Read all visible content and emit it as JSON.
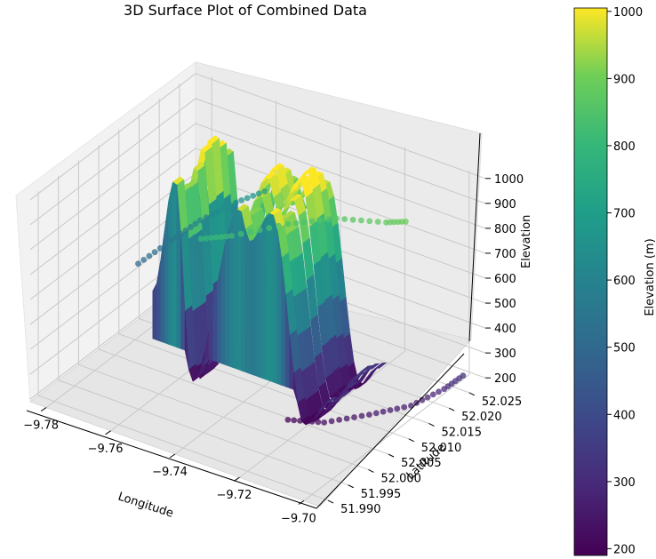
{
  "chart_data": {
    "type": "surface",
    "title": "3D Surface Plot of Combined Data",
    "xlabel": "Longitude",
    "ylabel": "Latitude",
    "zlabel": "Elevation",
    "x_ticks": [
      "−9.78",
      "−9.76",
      "−9.74",
      "−9.72",
      "−9.70"
    ],
    "y_ticks": [
      "51.990",
      "51.995",
      "52.000",
      "52.005",
      "52.010",
      "52.015",
      "52.020",
      "52.025"
    ],
    "z_ticks": [
      "200",
      "300",
      "400",
      "500",
      "600",
      "700",
      "800",
      "900",
      "1000"
    ],
    "xlim": [
      -9.785,
      -9.695
    ],
    "ylim": [
      51.988,
      52.029
    ],
    "zlim": [
      190,
      1010
    ],
    "grid": true,
    "colormap": "viridis",
    "colorbar": {
      "label": "Elevation (m)",
      "ticks": [
        "200",
        "300",
        "400",
        "500",
        "600",
        "700",
        "800",
        "900",
        "1000"
      ],
      "range": [
        190,
        1005
      ]
    },
    "surface_peaks": [
      {
        "longitude": -9.76,
        "elevation": 1000
      },
      {
        "longitude": -9.74,
        "elevation": 975
      },
      {
        "longitude": -9.73,
        "elevation": 1005
      }
    ],
    "surface_valleys": [
      {
        "longitude": -9.755,
        "elevation": 215
      },
      {
        "longitude": -9.72,
        "elevation": 205
      }
    ],
    "track_series": [
      {
        "type": "scatter",
        "elevation_range": [
          200,
          320
        ],
        "color": "#440154"
      },
      {
        "type": "scatter",
        "elevation_range": [
          800,
          900
        ],
        "color": "#9bd93c"
      },
      {
        "type": "scatter",
        "elevation_range": [
          500,
          700
        ],
        "color": "#2a9d8a"
      }
    ]
  }
}
